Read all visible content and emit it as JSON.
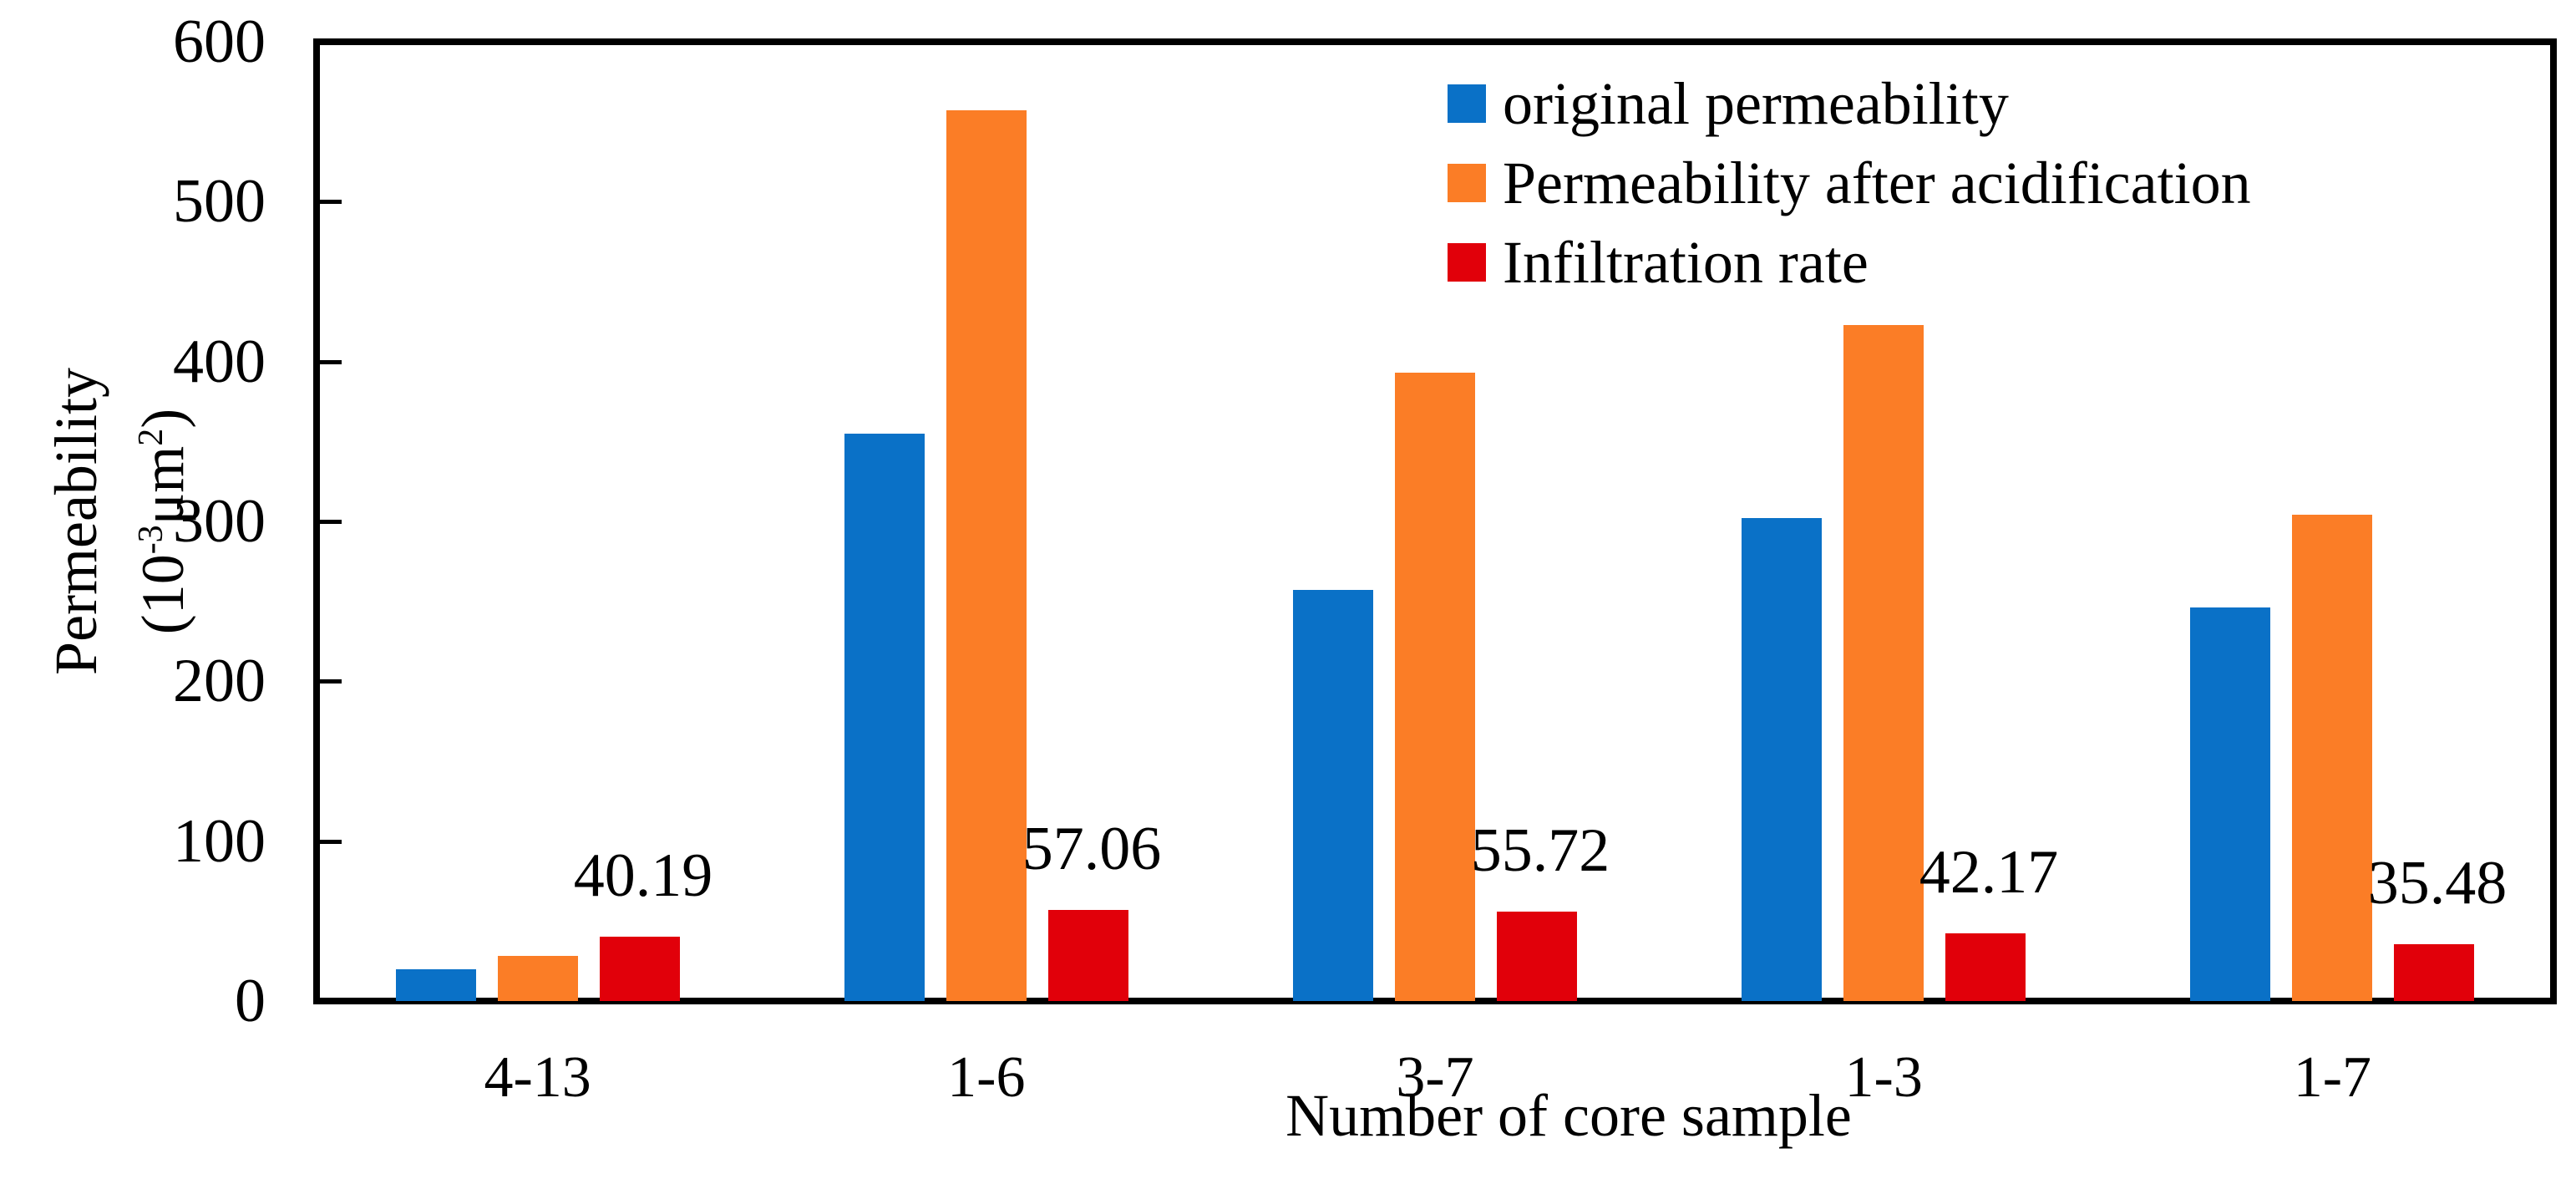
{
  "chart_data": {
    "type": "bar",
    "title": "",
    "xlabel": "Number of core sample",
    "ylabel_line1": "Permeability",
    "ylabel_line2": {
      "open": "(",
      "base": "10",
      "sup": "-3",
      "unit": "μm",
      "sup2": "2",
      "close": ")"
    },
    "categories": [
      "4-13",
      "1-6",
      "3-7",
      "1-3",
      "1-7"
    ],
    "series": [
      {
        "name": "original permeability",
        "color": "#0A71C7",
        "values": [
          20,
          355,
          257,
          302,
          246
        ]
      },
      {
        "name": "Permeability after acidification",
        "color": "#FB7D26",
        "values": [
          28,
          557,
          393,
          423,
          304
        ]
      },
      {
        "name": "Infiltration rate",
        "color": "#E1000A",
        "values": [
          40.19,
          57.06,
          55.72,
          42.17,
          35.48
        ],
        "data_labels": [
          "40.19",
          "57.06",
          "55.72",
          "42.17",
          "35.48"
        ]
      }
    ],
    "yticks": [
      0,
      100,
      200,
      300,
      400,
      500,
      600
    ],
    "ylim": [
      0,
      600
    ],
    "grid": false,
    "legend_position": "top-right-inside",
    "axis_color": "#000000",
    "background_color": "#FFFFFF"
  }
}
